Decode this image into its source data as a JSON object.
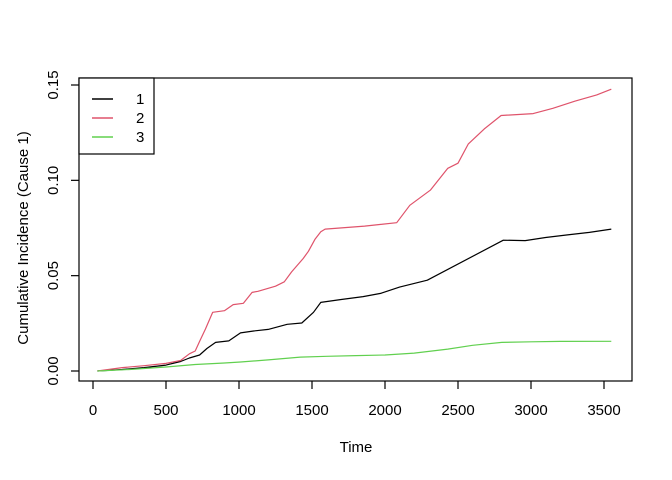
{
  "chart_data": {
    "type": "line",
    "title": "",
    "xlabel": "Time",
    "ylabel": "Cumulative Incidence (Cause 1)",
    "x_ticks": [
      0,
      500,
      1000,
      1500,
      2000,
      2500,
      3000,
      3500
    ],
    "x_tick_labels": [
      "0",
      "500",
      "1000",
      "1500",
      "2000",
      "2500",
      "3000",
      "3500"
    ],
    "y_ticks": [
      0.0,
      0.05,
      0.1,
      0.15
    ],
    "y_tick_labels": [
      "0.00",
      "0.05",
      "0.10",
      "0.15"
    ],
    "xlim": [
      -100,
      3690
    ],
    "ylim": [
      0,
      0.1535
    ],
    "grid": false,
    "background_color": "#ffffff",
    "axis_color": "#000000",
    "legend": {
      "position": "topleft",
      "entries": [
        {
          "label": "1",
          "color": "#000000"
        },
        {
          "label": "2",
          "color": "#DF536B"
        },
        {
          "label": "3",
          "color": "#61D04F"
        }
      ]
    },
    "series": [
      {
        "name": "1",
        "color": "#000000",
        "points": [
          [
            30,
            0
          ],
          [
            200,
            0.0008
          ],
          [
            350,
            0.0018
          ],
          [
            500,
            0.0031
          ],
          [
            600,
            0.005
          ],
          [
            660,
            0.0068
          ],
          [
            730,
            0.0084
          ],
          [
            780,
            0.0118
          ],
          [
            840,
            0.015
          ],
          [
            930,
            0.0158
          ],
          [
            1010,
            0.02
          ],
          [
            1100,
            0.021
          ],
          [
            1200,
            0.0218
          ],
          [
            1330,
            0.0245
          ],
          [
            1430,
            0.0252
          ],
          [
            1510,
            0.0308
          ],
          [
            1560,
            0.036
          ],
          [
            1700,
            0.0375
          ],
          [
            1850,
            0.039
          ],
          [
            1970,
            0.0407
          ],
          [
            2100,
            0.044
          ],
          [
            2290,
            0.0476
          ],
          [
            2810,
            0.0686
          ],
          [
            2960,
            0.0684
          ],
          [
            3100,
            0.07
          ],
          [
            3250,
            0.0714
          ],
          [
            3400,
            0.0727
          ],
          [
            3550,
            0.0744
          ]
        ]
      },
      {
        "name": "2",
        "color": "#DF536B",
        "points": [
          [
            30,
            0
          ],
          [
            200,
            0.0018
          ],
          [
            350,
            0.0028
          ],
          [
            500,
            0.004
          ],
          [
            600,
            0.0055
          ],
          [
            660,
            0.009
          ],
          [
            700,
            0.0105
          ],
          [
            730,
            0.0155
          ],
          [
            770,
            0.022
          ],
          [
            820,
            0.0308
          ],
          [
            900,
            0.0316
          ],
          [
            960,
            0.0348
          ],
          [
            1030,
            0.0355
          ],
          [
            1090,
            0.0412
          ],
          [
            1130,
            0.0418
          ],
          [
            1250,
            0.0445
          ],
          [
            1310,
            0.0468
          ],
          [
            1360,
            0.052
          ],
          [
            1440,
            0.059
          ],
          [
            1475,
            0.0628
          ],
          [
            1520,
            0.069
          ],
          [
            1560,
            0.073
          ],
          [
            1590,
            0.0744
          ],
          [
            1860,
            0.076
          ],
          [
            2080,
            0.0778
          ],
          [
            2170,
            0.0869
          ],
          [
            2310,
            0.0948
          ],
          [
            2430,
            0.1063
          ],
          [
            2500,
            0.109
          ],
          [
            2570,
            0.119
          ],
          [
            2680,
            0.127
          ],
          [
            2795,
            0.134
          ],
          [
            3015,
            0.135
          ],
          [
            3150,
            0.1378
          ],
          [
            3300,
            0.1415
          ],
          [
            3450,
            0.1448
          ],
          [
            3550,
            0.1478
          ]
        ]
      },
      {
        "name": "3",
        "color": "#61D04F",
        "points": [
          [
            30,
            0
          ],
          [
            250,
            0.0008
          ],
          [
            500,
            0.0021
          ],
          [
            700,
            0.0034
          ],
          [
            900,
            0.0042
          ],
          [
            1010,
            0.0047
          ],
          [
            1200,
            0.0058
          ],
          [
            1420,
            0.0073
          ],
          [
            1600,
            0.0077
          ],
          [
            1800,
            0.0081
          ],
          [
            2000,
            0.0084
          ],
          [
            2200,
            0.0094
          ],
          [
            2430,
            0.0115
          ],
          [
            2600,
            0.0135
          ],
          [
            2800,
            0.015
          ],
          [
            3000,
            0.0153
          ],
          [
            3200,
            0.0155
          ],
          [
            3550,
            0.0156
          ]
        ]
      }
    ]
  }
}
